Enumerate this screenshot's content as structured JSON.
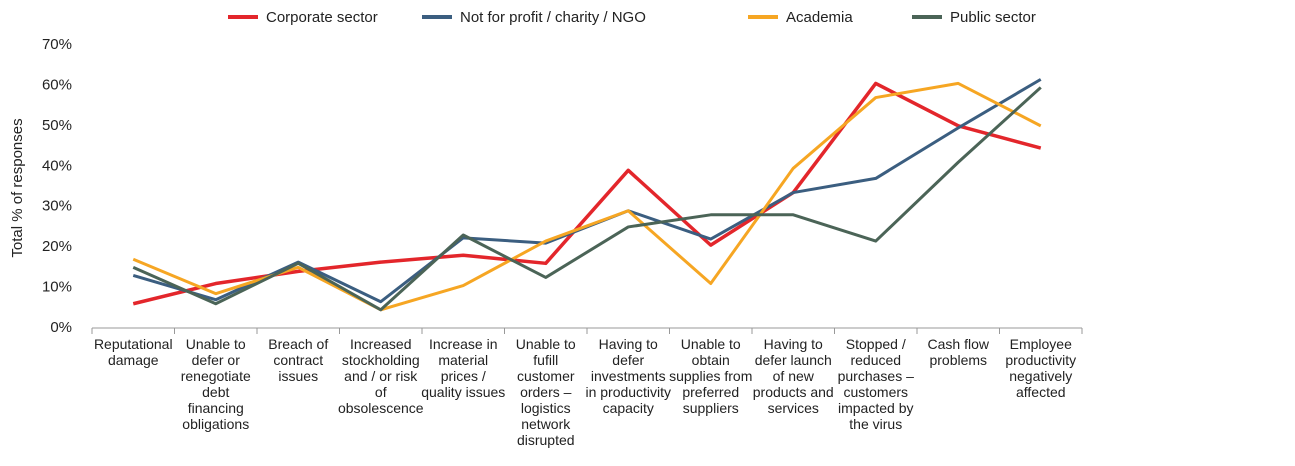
{
  "chart_data": {
    "type": "line",
    "y_label": "Total % of responses",
    "categories": [
      "Reputational damage",
      "Unable to defer or renegotiate debt financing obligations",
      "Breach of contract issues",
      "Increased stockholding and / or risk of obsolescence",
      "Increase in material prices / quality issues",
      "Unable to fufill customer orders – logistics network disrupted",
      "Having to defer investments in productivity capacity",
      "Unable to obtain supplies from preferred suppliers",
      "Having to defer launch of new products and services",
      "Stopped / reduced purchases – customers impacted by the virus",
      "Cash flow problems",
      "Employee productivity negatively affected"
    ],
    "series": [
      {
        "name": "Corporate sector",
        "color": "#e3262b",
        "values": [
          6,
          11,
          14,
          16.3,
          18,
          16,
          39,
          20.5,
          33.5,
          60.5,
          50,
          44.5
        ]
      },
      {
        "name": "Not for profit / charity / NGO",
        "color": "#3b5e80",
        "values": [
          13,
          7,
          16.3,
          6.5,
          22.3,
          21,
          29,
          22,
          33.5,
          37,
          49.5,
          61.5
        ]
      },
      {
        "name": "Academia",
        "color": "#f6a623",
        "values": [
          17,
          8.5,
          15,
          4.5,
          10.5,
          21.5,
          29,
          11,
          39.5,
          57,
          60.5,
          50
        ]
      },
      {
        "name": "Public sector",
        "color": "#4b6457",
        "values": [
          15,
          6,
          16,
          4.5,
          23,
          12.5,
          25,
          28,
          28,
          21.5,
          41,
          59.5
        ]
      }
    ],
    "ylim": [
      0,
      70
    ],
    "yticks": [
      {
        "value": 0,
        "label": "0%"
      },
      {
        "value": 10,
        "label": "10%"
      },
      {
        "value": 20,
        "label": "20%"
      },
      {
        "value": 30,
        "label": "30%"
      },
      {
        "value": 40,
        "label": "40%"
      },
      {
        "value": 50,
        "label": "50%"
      },
      {
        "value": 60,
        "label": "60%"
      },
      {
        "value": 70,
        "label": "70%"
      }
    ],
    "grid": false,
    "legend": "top"
  }
}
